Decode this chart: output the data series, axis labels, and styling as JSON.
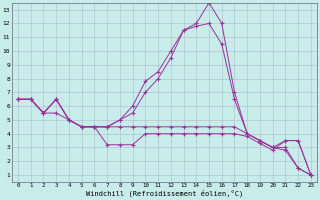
{
  "xlabel": "Windchill (Refroidissement éolien,°C)",
  "background_color": "#c8ecea",
  "grid_color": "#aabbcc",
  "line_color": "#993399",
  "xlim": [
    -0.5,
    23.5
  ],
  "ylim": [
    0.5,
    13.5
  ],
  "xticks": [
    0,
    1,
    2,
    3,
    4,
    5,
    6,
    7,
    8,
    9,
    10,
    11,
    12,
    13,
    14,
    15,
    16,
    17,
    18,
    19,
    20,
    21,
    22,
    23
  ],
  "yticks": [
    1,
    2,
    3,
    4,
    5,
    6,
    7,
    8,
    9,
    10,
    11,
    12,
    13
  ],
  "series": [
    {
      "x": [
        0,
        1,
        2,
        3,
        4,
        5,
        6,
        7,
        8,
        9,
        10,
        11,
        12,
        13,
        14,
        15,
        16,
        17,
        18,
        19,
        20,
        21,
        22,
        23
      ],
      "y": [
        6.5,
        6.5,
        5.5,
        6.5,
        5.0,
        4.5,
        4.5,
        4.5,
        5.0,
        6.0,
        7.8,
        8.5,
        10.0,
        11.5,
        12.0,
        13.5,
        12.0,
        7.0,
        4.0,
        3.5,
        3.0,
        3.0,
        1.5,
        1.0
      ]
    },
    {
      "x": [
        0,
        1,
        2,
        3,
        4,
        5,
        6,
        7,
        8,
        9,
        10,
        11,
        12,
        13,
        14,
        15,
        16,
        17,
        18,
        19,
        20,
        21,
        22,
        23
      ],
      "y": [
        6.5,
        6.5,
        5.5,
        6.5,
        5.0,
        4.5,
        4.5,
        4.5,
        5.0,
        5.5,
        7.0,
        8.0,
        9.5,
        11.5,
        11.8,
        12.0,
        10.5,
        6.5,
        4.0,
        3.5,
        3.0,
        3.5,
        3.5,
        1.0
      ]
    },
    {
      "x": [
        0,
        1,
        2,
        3,
        4,
        5,
        6,
        7,
        8,
        9,
        10,
        11,
        12,
        13,
        14,
        15,
        16,
        17,
        18,
        19,
        20,
        21,
        22,
        23
      ],
      "y": [
        6.5,
        6.5,
        5.5,
        6.5,
        5.0,
        4.5,
        4.5,
        4.5,
        4.5,
        4.5,
        4.5,
        4.5,
        4.5,
        4.5,
        4.5,
        4.5,
        4.5,
        4.5,
        4.0,
        3.5,
        3.0,
        2.8,
        1.5,
        1.0
      ]
    },
    {
      "x": [
        0,
        1,
        2,
        3,
        4,
        5,
        6,
        7,
        8,
        9,
        10,
        11,
        12,
        13,
        14,
        15,
        16,
        17,
        18,
        19,
        20,
        21,
        22,
        23
      ],
      "y": [
        6.5,
        6.5,
        5.5,
        5.5,
        5.0,
        4.5,
        4.5,
        3.2,
        3.2,
        3.2,
        4.0,
        4.0,
        4.0,
        4.0,
        4.0,
        4.0,
        4.0,
        4.0,
        3.8,
        3.3,
        2.8,
        3.5,
        3.5,
        1.0
      ]
    }
  ]
}
